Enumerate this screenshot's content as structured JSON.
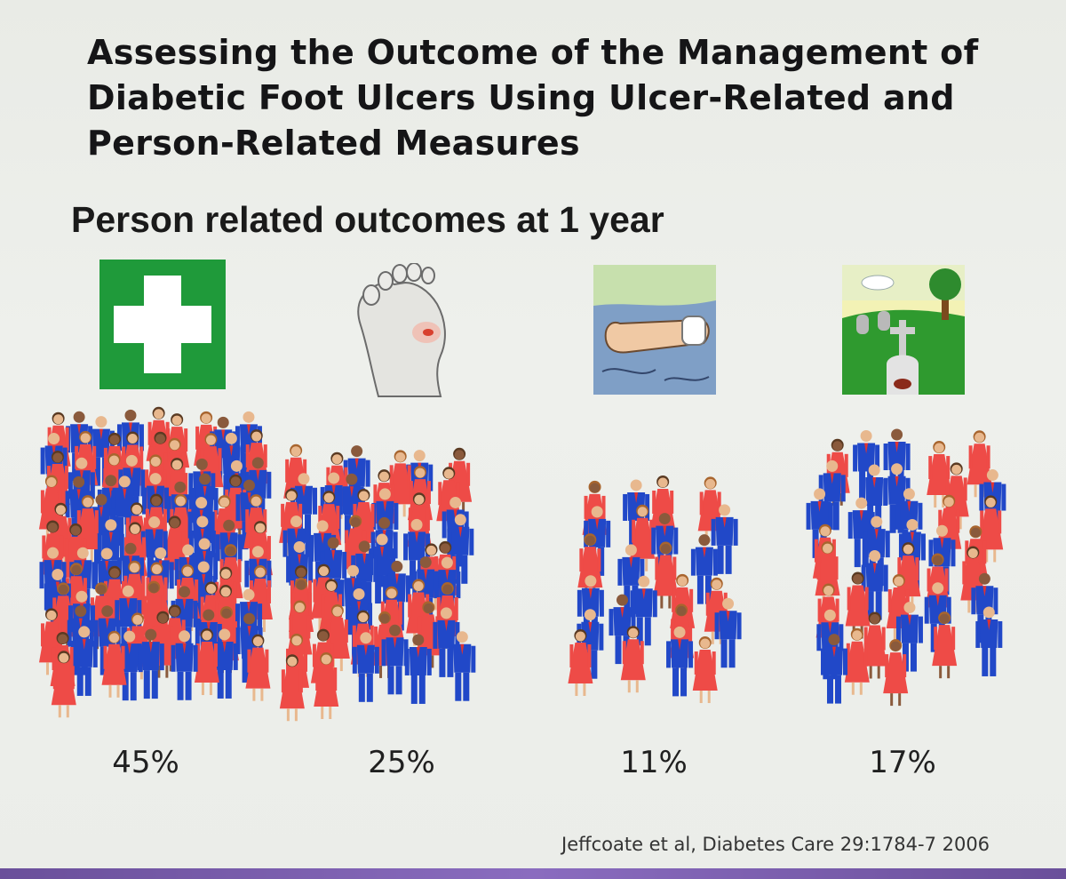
{
  "slide": {
    "title": "Assessing the Outcome of the Management of Diabetic Foot Ulcers Using Ulcer-Related and Person-Related Measures",
    "subtitle": "Person related outcomes at 1 year",
    "citation": "Jeffcoate et al, Diabetes Care 29:1784-7 2006"
  },
  "icons": [
    {
      "name": "first-aid-cross-icon",
      "bg": "#1f9a3a"
    },
    {
      "name": "foot-ulcer-icon",
      "bg": "#e9ebe6"
    },
    {
      "name": "amputated-leg-icon",
      "bg": "#8aa7c9"
    },
    {
      "name": "graveyard-icon",
      "bg": "#2f9a2f"
    }
  ],
  "chart_data": {
    "type": "pictograph",
    "categories": [
      "",
      "",
      "",
      ""
    ],
    "values": [
      45,
      25,
      11,
      17
    ],
    "value_labels": [
      "45%",
      "25%",
      "11%",
      "17%"
    ],
    "colors": {
      "female": "#ee4b47",
      "male": "#2148c8"
    }
  }
}
